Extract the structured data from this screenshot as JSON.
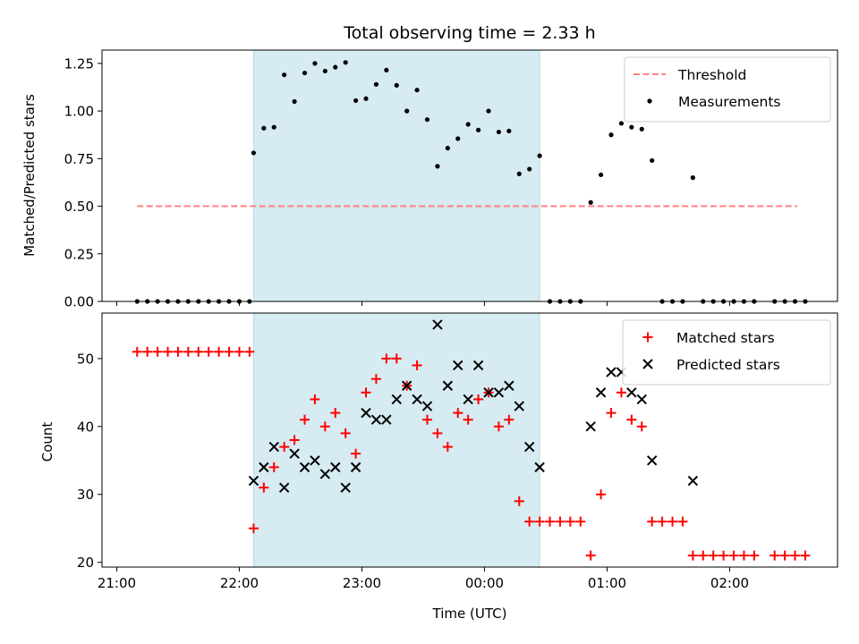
{
  "chart_data": [
    {
      "type": "scatter",
      "title": "Total observing time = 2.33 h",
      "xlabel": "",
      "ylabel": "Matched/Predicted stars",
      "x_range_hours": [
        20.88,
        26.88
      ],
      "ylim": [
        0,
        1.32
      ],
      "yticks": [
        0,
        0.25,
        0.5,
        0.75,
        1.0,
        1.25
      ],
      "ytick_labels": [
        "0.00",
        "0.25",
        "0.50",
        "0.75",
        "1.00",
        "1.25"
      ],
      "shaded_interval": [
        "22:07",
        "24:27"
      ],
      "legend": {
        "placement": "upper right",
        "entries": [
          "Threshold",
          "Measurements"
        ]
      },
      "series": [
        {
          "name": "Threshold",
          "style": "dashed-line",
          "color": "#ff7f7f",
          "points": [
            [
              "21:10",
              0.5
            ],
            [
              "26:33",
              0.5
            ]
          ]
        },
        {
          "name": "Measurements",
          "style": "dot",
          "color": "#000000",
          "points": [
            [
              "21:10",
              0
            ],
            [
              "21:15",
              0
            ],
            [
              "21:20",
              0
            ],
            [
              "21:25",
              0
            ],
            [
              "21:30",
              0
            ],
            [
              "21:35",
              0
            ],
            [
              "21:40",
              0
            ],
            [
              "21:45",
              0
            ],
            [
              "21:50",
              0
            ],
            [
              "21:55",
              0
            ],
            [
              "22:00",
              0
            ],
            [
              "22:05",
              0
            ],
            [
              "22:07",
              0.78
            ],
            [
              "22:12",
              0.91
            ],
            [
              "22:17",
              0.915
            ],
            [
              "22:22",
              1.19
            ],
            [
              "22:27",
              1.05
            ],
            [
              "22:32",
              1.2
            ],
            [
              "22:37",
              1.25
            ],
            [
              "22:42",
              1.21
            ],
            [
              "22:47",
              1.23
            ],
            [
              "22:52",
              1.255
            ],
            [
              "22:57",
              1.055
            ],
            [
              "23:02",
              1.065
            ],
            [
              "23:07",
              1.14
            ],
            [
              "23:12",
              1.215
            ],
            [
              "23:17",
              1.135
            ],
            [
              "23:22",
              1.0
            ],
            [
              "23:27",
              1.11
            ],
            [
              "23:32",
              0.955
            ],
            [
              "23:37",
              0.71
            ],
            [
              "23:42",
              0.805
            ],
            [
              "23:47",
              0.855
            ],
            [
              "23:52",
              0.93
            ],
            [
              "23:57",
              0.9
            ],
            [
              "24:02",
              1.0
            ],
            [
              "24:07",
              0.89
            ],
            [
              "24:12",
              0.895
            ],
            [
              "24:17",
              0.67
            ],
            [
              "24:22",
              0.695
            ],
            [
              "24:27",
              0.765
            ],
            [
              "24:32",
              0
            ],
            [
              "24:37",
              0
            ],
            [
              "24:42",
              0
            ],
            [
              "24:47",
              0
            ],
            [
              "24:52",
              0.52
            ],
            [
              "24:57",
              0.665
            ],
            [
              "25:02",
              0.875
            ],
            [
              "25:07",
              0.935
            ],
            [
              "25:12",
              0.915
            ],
            [
              "25:17",
              0.905
            ],
            [
              "25:22",
              0.74
            ],
            [
              "25:27",
              0
            ],
            [
              "25:32",
              0
            ],
            [
              "25:37",
              0
            ],
            [
              "25:42",
              0.65
            ],
            [
              "25:47",
              0
            ],
            [
              "25:52",
              0
            ],
            [
              "25:57",
              0
            ],
            [
              "26:02",
              0
            ],
            [
              "26:07",
              0
            ],
            [
              "26:12",
              0
            ],
            [
              "26:22",
              0
            ],
            [
              "26:27",
              0
            ],
            [
              "26:32",
              0
            ],
            [
              "26:37",
              0
            ]
          ]
        }
      ]
    },
    {
      "type": "scatter",
      "title": "",
      "xlabel": "Time (UTC)",
      "ylabel": "Count",
      "x_range_hours": [
        20.88,
        26.88
      ],
      "ylim": [
        19.3,
        56.7
      ],
      "yticks": [
        20,
        30,
        40,
        50
      ],
      "ytick_labels": [
        "20",
        "30",
        "40",
        "50"
      ],
      "xticks_hours": [
        21,
        22,
        23,
        24,
        25,
        26
      ],
      "xtick_labels": [
        "21:00",
        "22:00",
        "23:00",
        "00:00",
        "01:00",
        "02:00"
      ],
      "shaded_interval": [
        "22:07",
        "24:27"
      ],
      "legend": {
        "placement": "upper right",
        "entries": [
          "Matched stars",
          "Predicted stars"
        ]
      },
      "series": [
        {
          "name": "Matched stars",
          "style": "plus",
          "color": "#ff0000",
          "points": [
            [
              "21:10",
              51
            ],
            [
              "21:15",
              51
            ],
            [
              "21:20",
              51
            ],
            [
              "21:25",
              51
            ],
            [
              "21:30",
              51
            ],
            [
              "21:35",
              51
            ],
            [
              "21:40",
              51
            ],
            [
              "21:45",
              51
            ],
            [
              "21:50",
              51
            ],
            [
              "21:55",
              51
            ],
            [
              "22:00",
              51
            ],
            [
              "22:05",
              51
            ],
            [
              "22:07",
              25
            ],
            [
              "22:12",
              31
            ],
            [
              "22:17",
              34
            ],
            [
              "22:22",
              37
            ],
            [
              "22:27",
              38
            ],
            [
              "22:32",
              41
            ],
            [
              "22:37",
              44
            ],
            [
              "22:42",
              40
            ],
            [
              "22:47",
              42
            ],
            [
              "22:52",
              39
            ],
            [
              "22:57",
              36
            ],
            [
              "23:02",
              45
            ],
            [
              "23:07",
              47
            ],
            [
              "23:12",
              50
            ],
            [
              "23:17",
              50
            ],
            [
              "23:22",
              46
            ],
            [
              "23:27",
              49
            ],
            [
              "23:32",
              41
            ],
            [
              "23:37",
              39
            ],
            [
              "23:42",
              37
            ],
            [
              "23:47",
              42
            ],
            [
              "23:52",
              41
            ],
            [
              "23:57",
              44
            ],
            [
              "24:02",
              45
            ],
            [
              "24:07",
              40
            ],
            [
              "24:12",
              41
            ],
            [
              "24:17",
              29
            ],
            [
              "24:22",
              26
            ],
            [
              "24:27",
              26
            ],
            [
              "24:32",
              26
            ],
            [
              "24:37",
              26
            ],
            [
              "24:42",
              26
            ],
            [
              "24:47",
              26
            ],
            [
              "24:52",
              21
            ],
            [
              "24:57",
              30
            ],
            [
              "25:02",
              42
            ],
            [
              "25:07",
              45
            ],
            [
              "25:12",
              41
            ],
            [
              "25:17",
              40
            ],
            [
              "25:22",
              26
            ],
            [
              "25:27",
              26
            ],
            [
              "25:32",
              26
            ],
            [
              "25:37",
              26
            ],
            [
              "25:42",
              21
            ],
            [
              "25:47",
              21
            ],
            [
              "25:52",
              21
            ],
            [
              "25:57",
              21
            ],
            [
              "26:02",
              21
            ],
            [
              "26:07",
              21
            ],
            [
              "26:12",
              21
            ],
            [
              "26:22",
              21
            ],
            [
              "26:27",
              21
            ],
            [
              "26:32",
              21
            ],
            [
              "26:37",
              21
            ]
          ]
        },
        {
          "name": "Predicted stars",
          "style": "x",
          "color": "#000000",
          "points": [
            [
              "22:07",
              32
            ],
            [
              "22:12",
              34
            ],
            [
              "22:17",
              37
            ],
            [
              "22:22",
              31
            ],
            [
              "22:27",
              36
            ],
            [
              "22:32",
              34
            ],
            [
              "22:37",
              35
            ],
            [
              "22:42",
              33
            ],
            [
              "22:47",
              34
            ],
            [
              "22:52",
              31
            ],
            [
              "22:57",
              34
            ],
            [
              "23:02",
              42
            ],
            [
              "23:07",
              41
            ],
            [
              "23:12",
              41
            ],
            [
              "23:17",
              44
            ],
            [
              "23:22",
              46
            ],
            [
              "23:27",
              44
            ],
            [
              "23:32",
              43
            ],
            [
              "23:37",
              55
            ],
            [
              "23:42",
              46
            ],
            [
              "23:47",
              49
            ],
            [
              "23:52",
              44
            ],
            [
              "23:57",
              49
            ],
            [
              "24:02",
              45
            ],
            [
              "24:07",
              45
            ],
            [
              "24:12",
              46
            ],
            [
              "24:17",
              43
            ],
            [
              "24:22",
              37
            ],
            [
              "24:27",
              34
            ],
            [
              "24:52",
              40
            ],
            [
              "24:57",
              45
            ],
            [
              "25:02",
              48
            ],
            [
              "25:07",
              48
            ],
            [
              "25:12",
              45
            ],
            [
              "25:17",
              44
            ],
            [
              "25:22",
              35
            ],
            [
              "25:42",
              32
            ]
          ]
        }
      ]
    }
  ]
}
